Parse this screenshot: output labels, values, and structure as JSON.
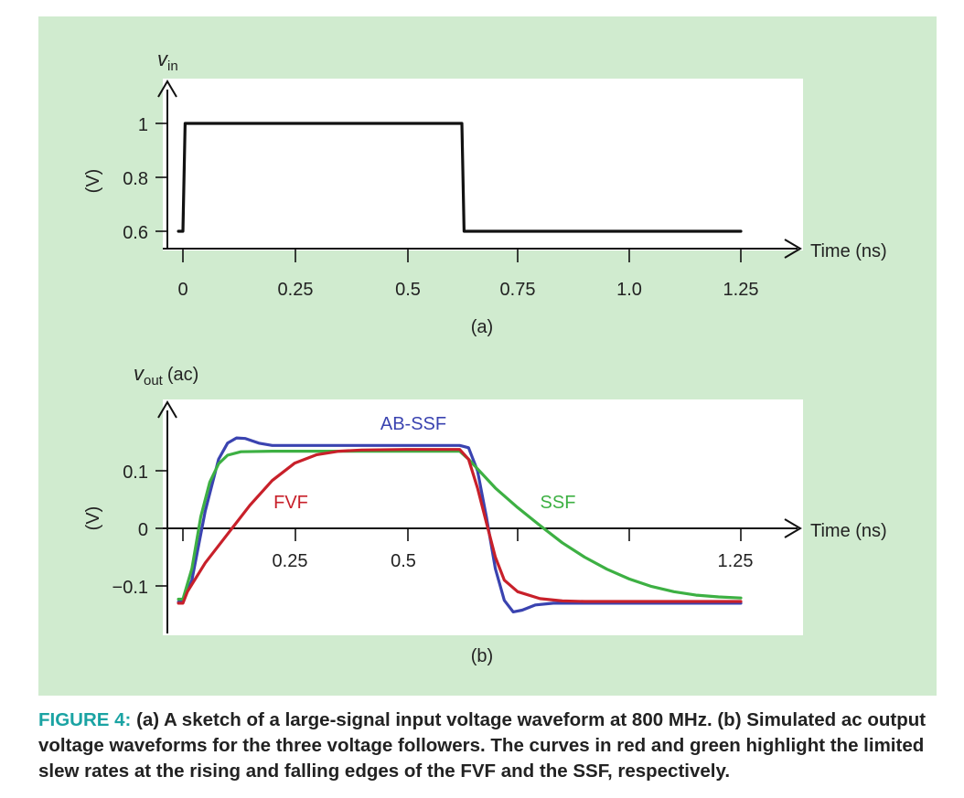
{
  "background_color": "#d0ebcf",
  "chart_data": [
    {
      "type": "line",
      "panel_label": "(a)",
      "ylabel_var": "v",
      "ylabel_sub": "in",
      "yunit": "(V)",
      "xlabel": "Time (ns)",
      "x_ticks": [
        "0",
        "0.25",
        "0.5",
        "0.75",
        "1.0",
        "1.25"
      ],
      "y_ticks": [
        "0.6",
        "0.8",
        "1"
      ],
      "xlim": [
        -0.05,
        1.36
      ],
      "ylim": [
        0.57,
        1.1
      ],
      "series": [
        {
          "color": "#111111",
          "points": [
            [
              -0.01,
              0.6
            ],
            [
              0.0,
              0.6
            ],
            [
              0.005,
              1.0
            ],
            [
              0.625,
              1.0
            ],
            [
              0.63,
              0.6
            ],
            [
              1.25,
              0.6
            ]
          ]
        }
      ]
    },
    {
      "type": "line",
      "panel_label": "(b)",
      "ylabel_var": "v",
      "ylabel_sub": "out",
      "ylabel_extra": "(ac)",
      "yunit": "(V)",
      "xlabel": "Time (ns)",
      "x_ticks": [
        "0.25",
        "0.5",
        "1.25"
      ],
      "y_ticks": [
        "−0.1",
        "0",
        "0.1"
      ],
      "xlim": [
        -0.05,
        1.36
      ],
      "ylim": [
        -0.17,
        0.21
      ],
      "series": [
        {
          "name": "AB-SSF",
          "color": "#3a43b0",
          "points": [
            [
              -0.01,
              -0.128
            ],
            [
              0.0,
              -0.128
            ],
            [
              0.02,
              -0.09
            ],
            [
              0.05,
              0.03
            ],
            [
              0.08,
              0.12
            ],
            [
              0.1,
              0.148
            ],
            [
              0.12,
              0.157
            ],
            [
              0.14,
              0.156
            ],
            [
              0.17,
              0.148
            ],
            [
              0.2,
              0.144
            ],
            [
              0.3,
              0.144
            ],
            [
              0.5,
              0.144
            ],
            [
              0.62,
              0.144
            ],
            [
              0.64,
              0.14
            ],
            [
              0.66,
              0.1
            ],
            [
              0.68,
              0.02
            ],
            [
              0.7,
              -0.07
            ],
            [
              0.72,
              -0.125
            ],
            [
              0.74,
              -0.145
            ],
            [
              0.76,
              -0.142
            ],
            [
              0.79,
              -0.133
            ],
            [
              0.83,
              -0.13
            ],
            [
              1.0,
              -0.13
            ],
            [
              1.25,
              -0.13
            ]
          ]
        },
        {
          "name": "SSF",
          "color": "#3db043",
          "points": [
            [
              -0.01,
              -0.123
            ],
            [
              0.0,
              -0.123
            ],
            [
              0.02,
              -0.07
            ],
            [
              0.04,
              0.02
            ],
            [
              0.06,
              0.08
            ],
            [
              0.08,
              0.112
            ],
            [
              0.1,
              0.127
            ],
            [
              0.13,
              0.133
            ],
            [
              0.2,
              0.134
            ],
            [
              0.4,
              0.134
            ],
            [
              0.62,
              0.134
            ],
            [
              0.64,
              0.12
            ],
            [
              0.7,
              0.07
            ],
            [
              0.75,
              0.036
            ],
            [
              0.8,
              0.005
            ],
            [
              0.85,
              -0.025
            ],
            [
              0.9,
              -0.05
            ],
            [
              0.95,
              -0.071
            ],
            [
              1.0,
              -0.088
            ],
            [
              1.05,
              -0.101
            ],
            [
              1.1,
              -0.11
            ],
            [
              1.15,
              -0.116
            ],
            [
              1.2,
              -0.119
            ],
            [
              1.25,
              -0.121
            ]
          ]
        },
        {
          "name": "FVF",
          "color": "#c8202a",
          "points": [
            [
              -0.01,
              -0.13
            ],
            [
              0.0,
              -0.13
            ],
            [
              0.01,
              -0.11
            ],
            [
              0.05,
              -0.06
            ],
            [
              0.1,
              -0.01
            ],
            [
              0.15,
              0.04
            ],
            [
              0.2,
              0.083
            ],
            [
              0.25,
              0.113
            ],
            [
              0.3,
              0.128
            ],
            [
              0.35,
              0.134
            ],
            [
              0.4,
              0.136
            ],
            [
              0.5,
              0.137
            ],
            [
              0.62,
              0.137
            ],
            [
              0.64,
              0.12
            ],
            [
              0.66,
              0.07
            ],
            [
              0.68,
              0.01
            ],
            [
              0.7,
              -0.05
            ],
            [
              0.72,
              -0.09
            ],
            [
              0.75,
              -0.11
            ],
            [
              0.8,
              -0.122
            ],
            [
              0.85,
              -0.126
            ],
            [
              0.9,
              -0.127
            ],
            [
              1.25,
              -0.127
            ]
          ]
        }
      ]
    }
  ],
  "caption": {
    "label": "FIGURE 4:",
    "text": " (a) A sketch of a large-signal input voltage waveform at 800 MHz. (b) Simulated ac output voltage waveforms for the three voltage followers. The curves in red and green highlight the limited slew rates at the rising and falling edges of the FVF and the SSF, respectively."
  }
}
